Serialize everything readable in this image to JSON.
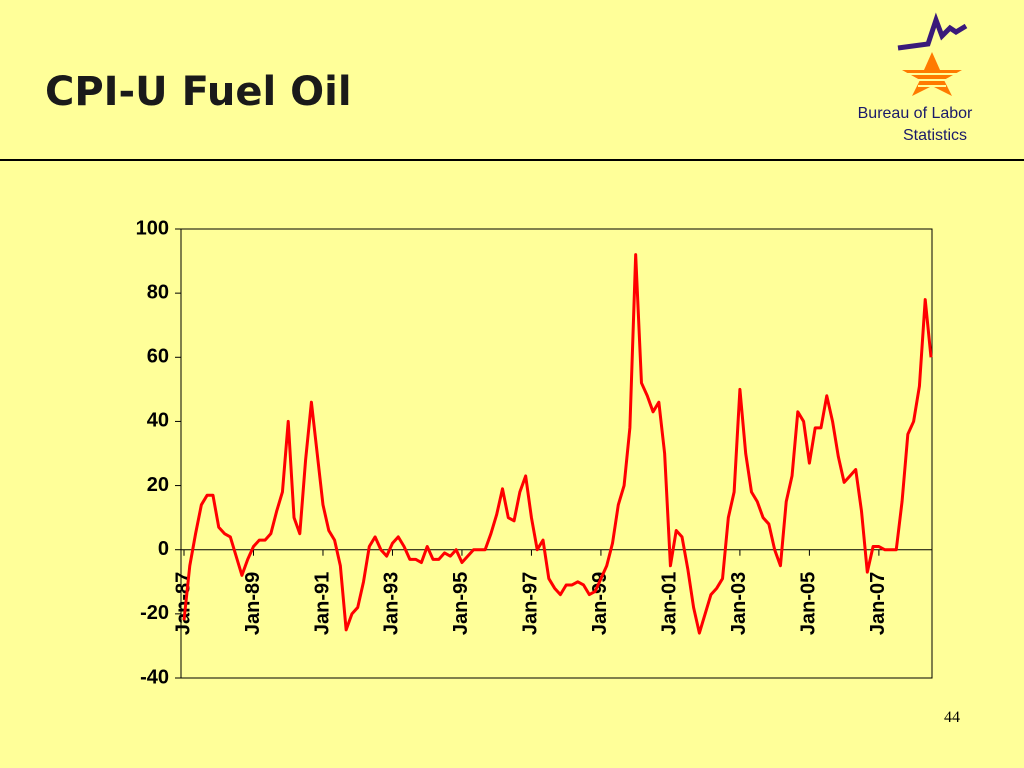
{
  "slide": {
    "org_name": [
      "Bureau of Labor",
      "Statistics"
    ],
    "page_number": "44"
  },
  "chart_data": {
    "type": "line",
    "title": "CPI-U Fuel Oil",
    "categories": [
      "Jan-87",
      null,
      null,
      null,
      null,
      null,
      null,
      null,
      null,
      null,
      null,
      null,
      "Jan-89",
      null,
      null,
      null,
      null,
      null,
      null,
      null,
      null,
      null,
      null,
      null,
      "Jan-91",
      null,
      null,
      null,
      null,
      null,
      null,
      null,
      null,
      null,
      null,
      null,
      "Jan-93",
      null,
      null,
      null,
      null,
      null,
      null,
      null,
      null,
      null,
      null,
      null,
      "Jan-95",
      null,
      null,
      null,
      null,
      null,
      null,
      null,
      null,
      null,
      null,
      null,
      "Jan-97",
      null,
      null,
      null,
      null,
      null,
      null,
      null,
      null,
      null,
      null,
      null,
      "Jan-99",
      null,
      null,
      null,
      null,
      null,
      null,
      null,
      null,
      null,
      null,
      null,
      "Jan-01",
      null,
      null,
      null,
      null,
      null,
      null,
      null,
      null,
      null,
      null,
      null,
      "Jan-03",
      null,
      null,
      null,
      null,
      null,
      null,
      null,
      null,
      null,
      null,
      null,
      "Jan-05",
      null,
      null,
      null,
      null,
      null,
      null,
      null,
      null,
      null,
      null,
      null,
      "Jan-07",
      null,
      null,
      null,
      null,
      null,
      null,
      null,
      null,
      null
    ],
    "series": [
      {
        "name": "CPI-U Fuel Oil",
        "color": "#ff0000",
        "values": [
          -22,
          -5,
          5,
          14,
          17,
          17,
          7,
          5,
          4,
          -2,
          -8,
          -3,
          1,
          3,
          3,
          5,
          12,
          18,
          40,
          10,
          5,
          28,
          46,
          30,
          14,
          6,
          3,
          -5,
          -25,
          -20,
          -18,
          -10,
          1,
          4,
          0,
          -2,
          2,
          4,
          1,
          -3,
          -3,
          -4,
          1,
          -3,
          -3,
          -1,
          -2,
          0,
          -4,
          -2,
          0,
          0,
          0,
          5,
          11,
          19,
          10,
          9,
          18,
          23,
          10,
          0,
          3,
          -9,
          -12,
          -14,
          -11,
          -11,
          -10,
          -11,
          -14,
          -13,
          -9,
          -5,
          2,
          14,
          20,
          38,
          92,
          52,
          48,
          43,
          46,
          30,
          -5,
          6,
          4,
          -6,
          -18,
          -26,
          -20,
          -14,
          -12,
          -9,
          10,
          18,
          50,
          30,
          18,
          15,
          10,
          8,
          0,
          -5,
          15,
          23,
          43,
          40,
          27,
          38,
          38,
          48,
          40,
          29,
          21,
          23,
          25,
          12,
          -7,
          1,
          1,
          0,
          0,
          0,
          15,
          36,
          40,
          51,
          78,
          60
        ]
      }
    ],
    "ylim": [
      -40,
      100
    ],
    "yticks": [
      -40,
      -20,
      0,
      20,
      40,
      60,
      80,
      100
    ]
  }
}
